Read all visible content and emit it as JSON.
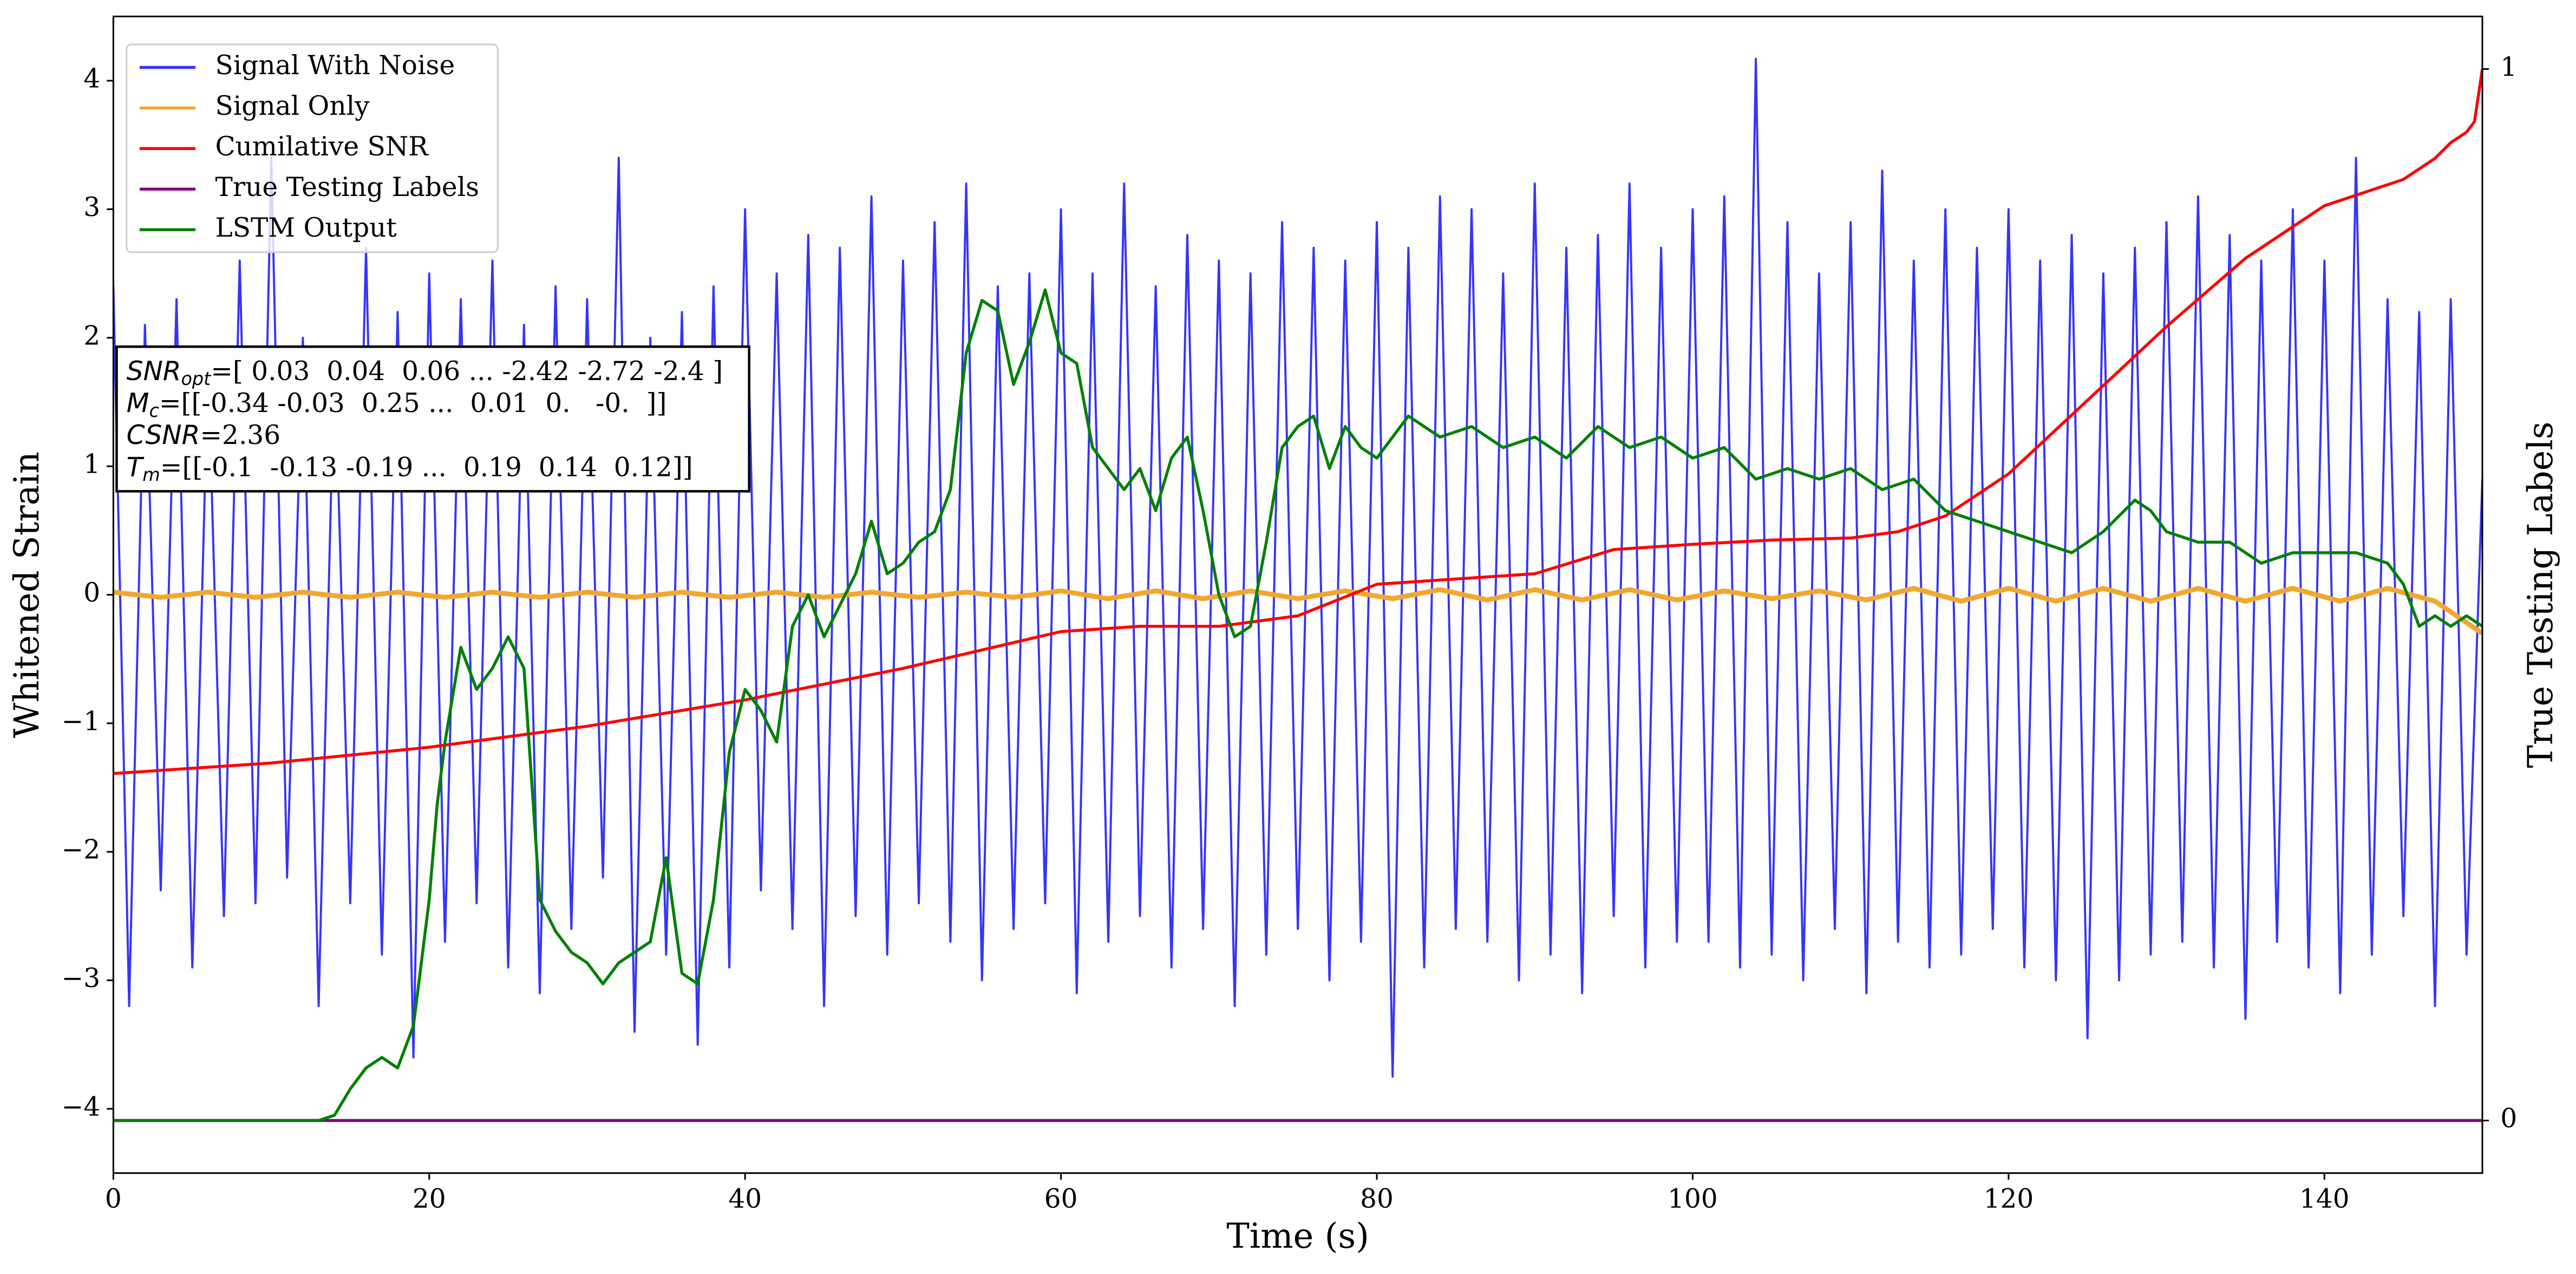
{
  "chart_data": {
    "type": "line",
    "xlabel": "Time (s)",
    "ylabel": "Whitened Strain",
    "y2label": "True Testing Labels",
    "xlim": [
      0,
      150
    ],
    "xticks": [
      0,
      20,
      40,
      60,
      80,
      100,
      120,
      140
    ],
    "ylim": [
      -4.5,
      4.5
    ],
    "yticks": [
      {
        "value": -4,
        "label": "−4"
      },
      {
        "value": -3,
        "label": "−3"
      },
      {
        "value": -2,
        "label": "−2"
      },
      {
        "value": -1,
        "label": "−1"
      },
      0,
      1,
      2,
      3,
      4
    ],
    "y2lim": [
      -0.05,
      1.05
    ],
    "y2ticks": [
      0,
      1
    ],
    "legend": "upper left",
    "series": [
      {
        "name": "Signal With Noise",
        "color": "#3535fa",
        "x": [
          0,
          1,
          2,
          3,
          4,
          5,
          6,
          7,
          8,
          9,
          10,
          11,
          12,
          13,
          14,
          15,
          16,
          17,
          18,
          19,
          20,
          21,
          22,
          23,
          24,
          25,
          26,
          27,
          28,
          29,
          30,
          31,
          32,
          33,
          34,
          35,
          36,
          37,
          38,
          39,
          40,
          41,
          42,
          43,
          44,
          45,
          46,
          47,
          48,
          49,
          50,
          51,
          52,
          53,
          54,
          55,
          56,
          57,
          58,
          59,
          60,
          61,
          62,
          63,
          64,
          65,
          66,
          67,
          68,
          69,
          70,
          71,
          72,
          73,
          74,
          75,
          76,
          77,
          78,
          79,
          80,
          81,
          82,
          83,
          84,
          85,
          86,
          87,
          88,
          89,
          90,
          91,
          92,
          93,
          94,
          95,
          96,
          97,
          98,
          99,
          100,
          101,
          102,
          103,
          104,
          105,
          106,
          107,
          108,
          109,
          110,
          111,
          112,
          113,
          114,
          115,
          116,
          117,
          118,
          119,
          120,
          121,
          122,
          123,
          124,
          125,
          126,
          127,
          128,
          129,
          130,
          131,
          132,
          133,
          134,
          135,
          136,
          137,
          138,
          139,
          140,
          141,
          142,
          143,
          144,
          145,
          146,
          147,
          148,
          149,
          150
        ],
        "values": [
          2.4,
          -3.2,
          2.1,
          -2.3,
          2.3,
          -2.9,
          1.8,
          -2.5,
          2.6,
          -2.4,
          3.4,
          -2.2,
          2.0,
          -3.2,
          1.9,
          -2.4,
          2.7,
          -2.8,
          2.2,
          -3.6,
          2.5,
          -2.7,
          2.3,
          -2.4,
          2.6,
          -2.9,
          2.1,
          -3.1,
          2.4,
          -2.6,
          2.3,
          -2.2,
          3.4,
          -3.4,
          2.0,
          -2.8,
          2.2,
          -3.5,
          2.4,
          -2.9,
          3.0,
          -2.3,
          2.5,
          -2.6,
          2.8,
          -3.2,
          2.7,
          -2.5,
          3.1,
          -2.8,
          2.6,
          -2.4,
          2.9,
          -2.7,
          3.2,
          -3.0,
          2.4,
          -2.6,
          2.5,
          -2.4,
          3.0,
          -3.1,
          2.5,
          -2.7,
          3.2,
          -2.5,
          2.4,
          -2.9,
          2.8,
          -2.6,
          2.6,
          -3.2,
          2.5,
          -2.8,
          2.9,
          -2.6,
          2.7,
          -3.0,
          2.6,
          -2.7,
          2.9,
          -3.75,
          2.7,
          -2.9,
          3.1,
          -2.6,
          3.0,
          -2.7,
          2.5,
          -3.0,
          3.2,
          -2.8,
          2.7,
          -3.1,
          2.8,
          -2.5,
          3.2,
          -2.9,
          2.7,
          -2.7,
          3.0,
          -2.7,
          3.1,
          -2.9,
          4.17,
          -2.8,
          2.9,
          -3.0,
          2.5,
          -2.6,
          2.9,
          -3.1,
          3.3,
          -2.7,
          2.6,
          -2.9,
          3.0,
          -2.8,
          2.7,
          -2.6,
          3.0,
          -2.9,
          2.6,
          -3.0,
          2.8,
          -3.45,
          2.5,
          -3.0,
          2.7,
          -2.8,
          2.9,
          -2.7,
          3.1,
          -2.9,
          2.8,
          -3.3,
          2.6,
          -2.7,
          3.0,
          -2.9,
          2.6,
          -3.1,
          3.4,
          -2.8,
          2.3,
          -2.5,
          2.2,
          -3.2,
          2.3,
          -2.8,
          0.9
        ]
      },
      {
        "name": "Signal Only",
        "color": "#f0a830",
        "x": [
          0,
          3,
          6,
          9,
          12,
          15,
          18,
          21,
          24,
          27,
          30,
          33,
          36,
          39,
          42,
          45,
          48,
          51,
          54,
          57,
          60,
          63,
          66,
          69,
          72,
          75,
          78,
          81,
          84,
          87,
          90,
          93,
          96,
          99,
          102,
          105,
          108,
          111,
          114,
          117,
          120,
          123,
          126,
          129,
          132,
          135,
          138,
          141,
          144,
          147,
          150
        ],
        "values": [
          0.02,
          -0.02,
          0.02,
          -0.02,
          0.02,
          -0.02,
          0.02,
          -0.02,
          0.02,
          -0.02,
          0.02,
          -0.02,
          0.02,
          -0.02,
          0.02,
          -0.02,
          0.02,
          -0.02,
          0.02,
          -0.02,
          0.03,
          -0.03,
          0.03,
          -0.03,
          0.03,
          -0.03,
          0.03,
          -0.03,
          0.04,
          -0.04,
          0.04,
          -0.04,
          0.04,
          -0.04,
          0.03,
          -0.03,
          0.03,
          -0.04,
          0.05,
          -0.05,
          0.05,
          -0.05,
          0.05,
          -0.05,
          0.05,
          -0.05,
          0.05,
          -0.05,
          0.05,
          -0.05,
          -0.3
        ]
      },
      {
        "name": "Cumilative SNR",
        "color": "#ff0000",
        "axis": "y2",
        "x": [
          0,
          10,
          20,
          30,
          40,
          50,
          60,
          65,
          70,
          75,
          80,
          85,
          90,
          95,
          100,
          105,
          110,
          113,
          116,
          118,
          120,
          125,
          130,
          135,
          140,
          143,
          145,
          147,
          148,
          149,
          149.5,
          150
        ],
        "values": [
          0.33,
          0.34,
          0.355,
          0.375,
          0.4,
          0.43,
          0.465,
          0.47,
          0.47,
          0.48,
          0.51,
          0.515,
          0.52,
          0.543,
          0.548,
          0.552,
          0.554,
          0.56,
          0.575,
          0.595,
          0.615,
          0.685,
          0.755,
          0.82,
          0.87,
          0.885,
          0.895,
          0.915,
          0.93,
          0.94,
          0.95,
          1.0
        ]
      },
      {
        "name": "True Testing Labels",
        "color": "#800080",
        "axis": "y2",
        "x": [
          0,
          150
        ],
        "values": [
          0,
          0
        ]
      },
      {
        "name": "LSTM Output",
        "color": "#008000",
        "axis": "y2",
        "x": [
          0,
          13,
          14,
          15,
          16,
          17,
          18,
          19,
          19.5,
          20,
          20.5,
          21,
          22,
          23,
          24,
          25,
          26,
          27,
          28,
          29,
          30,
          31,
          32,
          33,
          34,
          35,
          36,
          37,
          38,
          39,
          40,
          41,
          42,
          43,
          44,
          45,
          46,
          47,
          48,
          49,
          50,
          51,
          52,
          53,
          54,
          55,
          56,
          57,
          58,
          59,
          60,
          61,
          62,
          63,
          64,
          65,
          66,
          67,
          68,
          69,
          70,
          71,
          72,
          73,
          74,
          75,
          76,
          77,
          78,
          79,
          80,
          82,
          84,
          86,
          88,
          90,
          92,
          94,
          96,
          98,
          100,
          102,
          104,
          106,
          108,
          110,
          112,
          114,
          116,
          118,
          120,
          122,
          124,
          126,
          128,
          129,
          130,
          132,
          134,
          136,
          138,
          140,
          142,
          144,
          145,
          146,
          147,
          148,
          149,
          150
        ],
        "values": [
          0,
          0,
          0.005,
          0.03,
          0.05,
          0.06,
          0.05,
          0.09,
          0.15,
          0.21,
          0.3,
          0.36,
          0.45,
          0.41,
          0.43,
          0.46,
          0.43,
          0.21,
          0.18,
          0.16,
          0.15,
          0.13,
          0.15,
          0.16,
          0.17,
          0.25,
          0.14,
          0.13,
          0.21,
          0.35,
          0.41,
          0.39,
          0.36,
          0.47,
          0.5,
          0.46,
          0.49,
          0.52,
          0.57,
          0.52,
          0.53,
          0.55,
          0.56,
          0.6,
          0.73,
          0.78,
          0.77,
          0.7,
          0.74,
          0.79,
          0.73,
          0.72,
          0.64,
          0.62,
          0.6,
          0.62,
          0.58,
          0.63,
          0.65,
          0.58,
          0.5,
          0.46,
          0.47,
          0.55,
          0.64,
          0.66,
          0.67,
          0.62,
          0.66,
          0.64,
          0.63,
          0.67,
          0.65,
          0.66,
          0.64,
          0.65,
          0.63,
          0.66,
          0.64,
          0.65,
          0.63,
          0.64,
          0.61,
          0.62,
          0.61,
          0.62,
          0.6,
          0.61,
          0.58,
          0.57,
          0.56,
          0.55,
          0.54,
          0.56,
          0.59,
          0.58,
          0.56,
          0.55,
          0.55,
          0.53,
          0.54,
          0.54,
          0.54,
          0.53,
          0.51,
          0.47,
          0.48,
          0.47,
          0.48,
          0.47
        ]
      }
    ],
    "annotation": [
      {
        "symbol": "SNR",
        "sub": "opt",
        "text": "=[ 0.03  0.04  0.06 ... -2.42 -2.72 -2.4 ]"
      },
      {
        "symbol": "M",
        "sub": "c",
        "text": "=[[-0.34 -0.03  0.25 ...  0.01  0.   -0.  ]]"
      },
      {
        "symbol": "CSNR",
        "text": "=2.36"
      },
      {
        "symbol": "T",
        "sub": "m",
        "text": "=[[-0.1  -0.13 -0.19 ...  0.19  0.14  0.12]]"
      }
    ]
  }
}
